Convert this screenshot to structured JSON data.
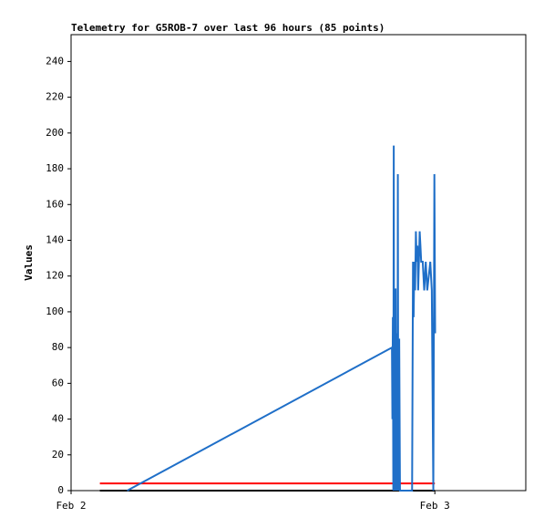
{
  "chart_data": {
    "type": "line",
    "title": "Telemetry for G5ROB-7 over last 96 hours (85 points)",
    "y_label": "Values",
    "xlim": [
      0,
      30
    ],
    "xticks": [
      {
        "value": 0,
        "label": "Feb 2"
      },
      {
        "value": 24,
        "label": "Feb 3"
      }
    ],
    "ylim": [
      0,
      255
    ],
    "yticks": [
      0,
      20,
      40,
      60,
      80,
      100,
      120,
      140,
      160,
      180,
      200,
      220,
      240
    ],
    "grid": false,
    "series": [
      {
        "color": "#000000",
        "x": [
          1.9,
          24.0
        ],
        "values": [
          0,
          0
        ]
      },
      {
        "color": "#ff0000",
        "x": [
          1.9,
          24.0
        ],
        "values": [
          4,
          4
        ]
      },
      {
        "color": "#1f6fc8",
        "x": [
          3.7,
          21.17,
          21.2,
          21.23,
          21.26,
          21.29,
          21.32,
          21.35,
          21.38,
          21.41,
          21.44,
          21.5,
          21.53,
          21.56,
          21.59,
          21.65,
          21.7,
          22.5,
          22.53,
          22.56,
          22.6,
          22.65,
          22.7,
          22.75,
          22.8,
          22.85,
          22.9,
          22.95,
          23.0,
          23.05,
          23.1,
          23.2,
          23.3,
          23.4,
          23.5,
          23.7,
          23.8,
          23.9,
          23.97,
          24.02
        ],
        "values": [
          0,
          80,
          40,
          97,
          0,
          193,
          0,
          97,
          0,
          113,
          0,
          88,
          0,
          177,
          0,
          85,
          0,
          0,
          65,
          128,
          97,
          128,
          112,
          145,
          128,
          137,
          112,
          128,
          145,
          137,
          128,
          128,
          112,
          128,
          112,
          128,
          112,
          0,
          177,
          88
        ]
      }
    ]
  }
}
